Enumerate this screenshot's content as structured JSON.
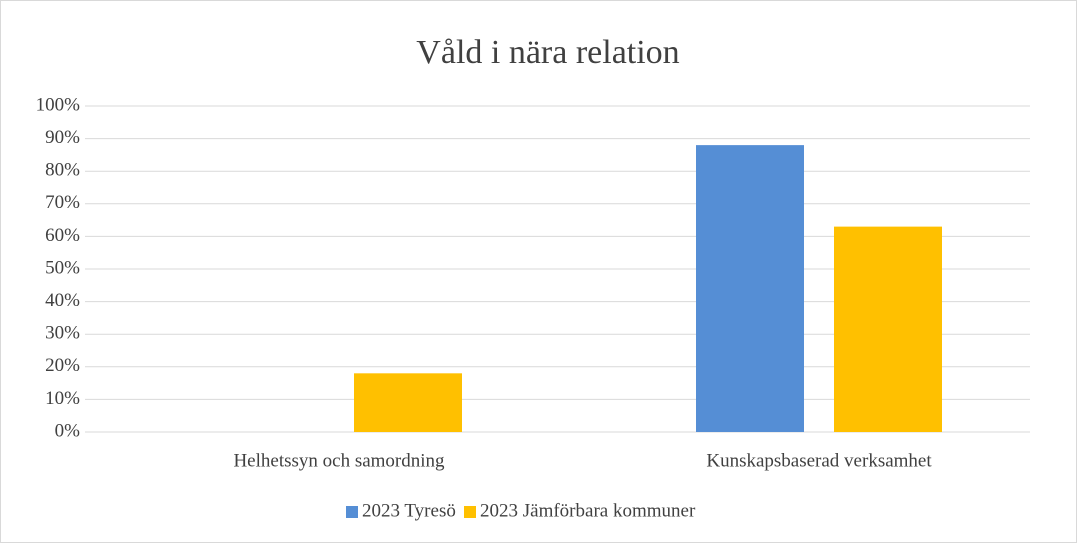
{
  "chart_data": {
    "type": "bar",
    "title": "Våld i nära relation",
    "categories": [
      "Helhetssyn och samordning",
      "Kunskapsbaserad verksamhet"
    ],
    "series": [
      {
        "name": "2023 Tyresö",
        "color": "#558ed5",
        "values": [
          0,
          88
        ]
      },
      {
        "name": "2023 Jämförbara kommuner",
        "color": "#ffc000",
        "values": [
          18,
          63
        ]
      }
    ],
    "ylim": [
      0,
      100
    ],
    "yticks": [
      {
        "value": 0,
        "label": "0%"
      },
      {
        "value": 10,
        "label": "10%"
      },
      {
        "value": 20,
        "label": "20%"
      },
      {
        "value": 30,
        "label": "30%"
      },
      {
        "value": 40,
        "label": "40%"
      },
      {
        "value": 50,
        "label": "50%"
      },
      {
        "value": 60,
        "label": "60%"
      },
      {
        "value": 70,
        "label": "70%"
      },
      {
        "value": 80,
        "label": "80%"
      },
      {
        "value": 90,
        "label": "90%"
      },
      {
        "value": 100,
        "label": "100%"
      }
    ],
    "grid": true,
    "legend": "bottom"
  }
}
